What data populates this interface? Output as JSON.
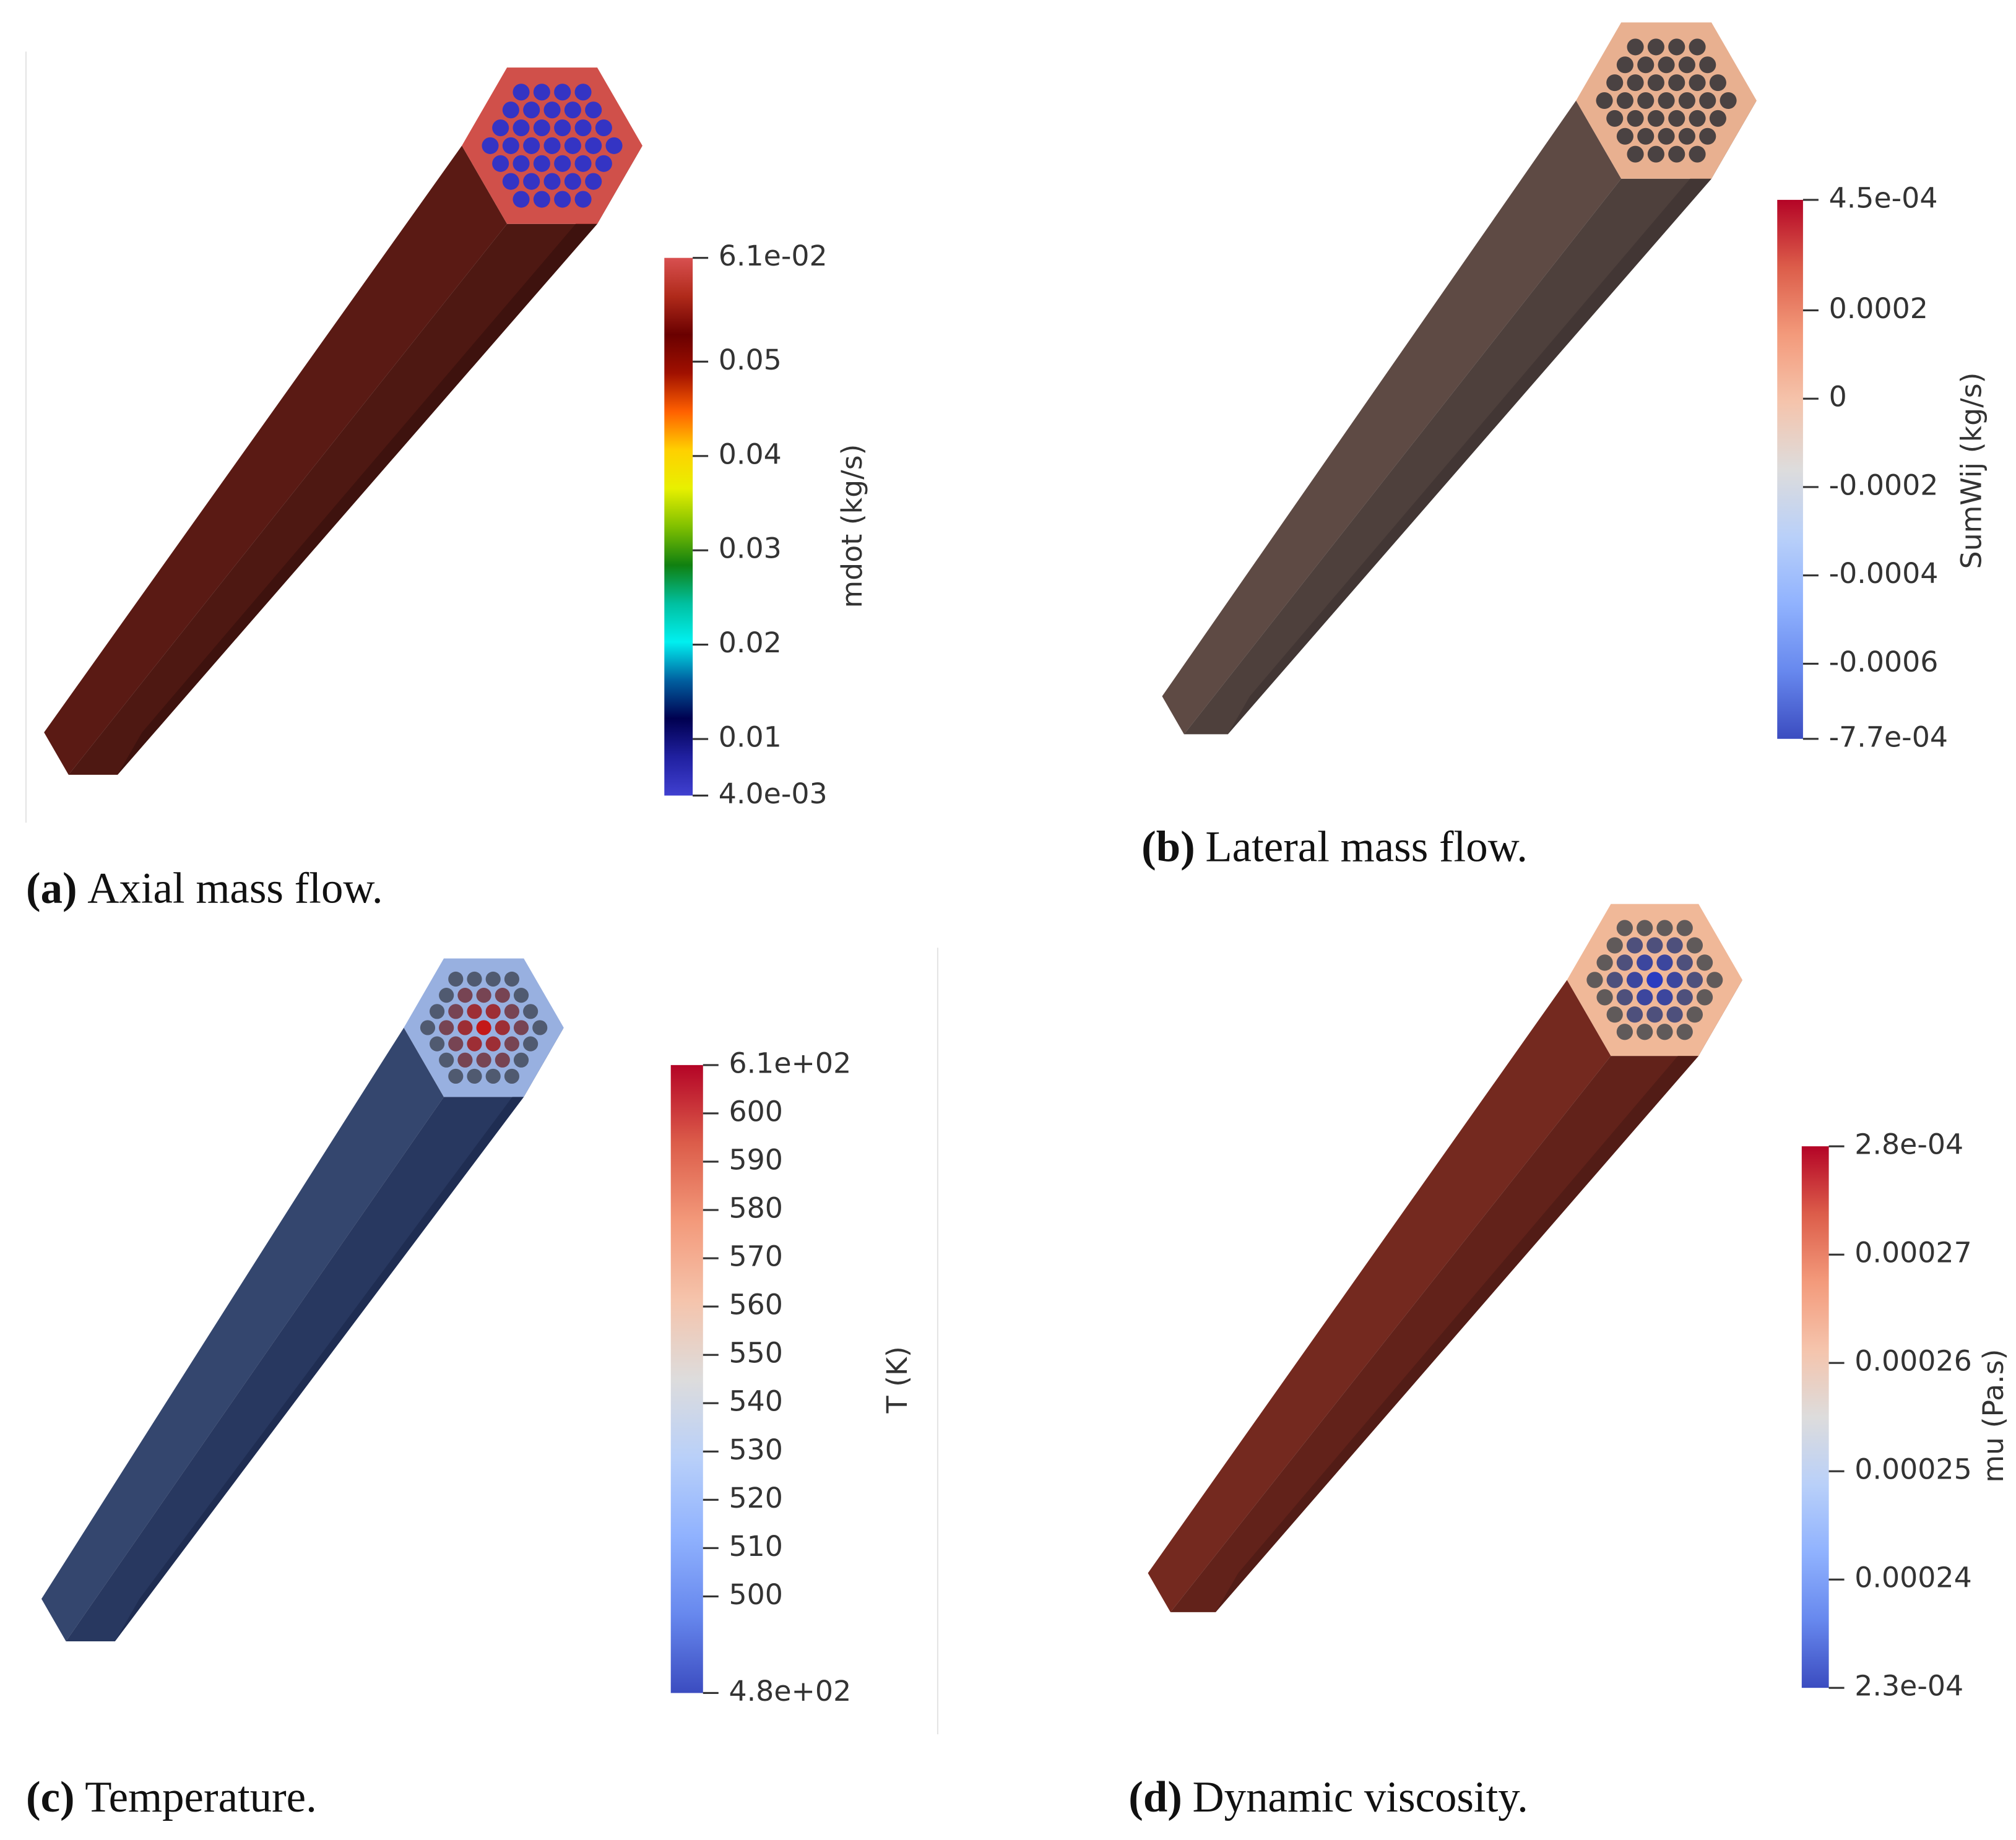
{
  "panels": [
    {
      "label": "(a)",
      "caption": "Axial mass flow.",
      "colorbar": {
        "title": "mdot (kg/s)",
        "lim": [
          0.004,
          0.061
        ],
        "ticks": [
          {
            "value": 0.061,
            "label": "6.1e-02"
          },
          0.05,
          0.04,
          0.03,
          0.02,
          0.01,
          {
            "value": 0.004,
            "label": "4.0e-03"
          }
        ]
      }
    },
    {
      "label": "(b)",
      "caption": "Lateral mass flow.",
      "colorbar": {
        "title": "SumWij (kg/s)",
        "lim": [
          -0.00077,
          0.00045
        ],
        "ticks": [
          {
            "value": 0.00045,
            "label": "4.5e-04"
          },
          0.0002,
          0,
          -0.0002,
          -0.0004,
          -0.0006,
          {
            "value": -0.00077,
            "label": "-7.7e-04"
          }
        ]
      }
    },
    {
      "label": "(c)",
      "caption": "Temperature.",
      "colorbar": {
        "title": "T (K)",
        "lim": [
          480,
          610
        ],
        "ticks": [
          {
            "value": 610,
            "label": "6.1e+02"
          },
          600,
          590,
          580,
          570,
          560,
          550,
          540,
          530,
          520,
          510,
          500,
          {
            "value": 480,
            "label": "4.8e+02"
          }
        ]
      }
    },
    {
      "label": "(d)",
      "caption": "Dynamic viscosity.",
      "colorbar": {
        "title": "mu (Pa.s)",
        "lim": [
          0.00023,
          0.00028
        ],
        "ticks": [
          {
            "value": 0.00028,
            "label": "2.8e-04"
          },
          0.00027,
          0.00026,
          0.00025,
          0.00024,
          {
            "value": 0.00023,
            "label": "2.3e-04"
          }
        ]
      }
    }
  ]
}
